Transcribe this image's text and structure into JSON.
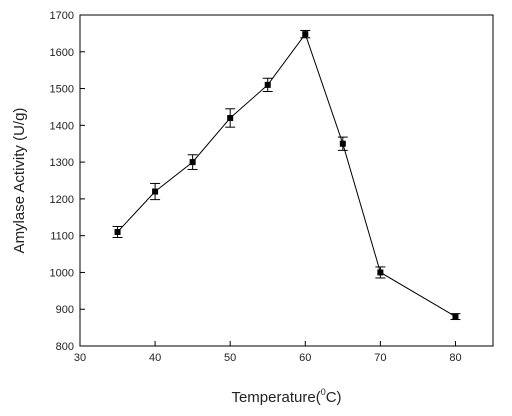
{
  "chart_data": {
    "type": "scatter",
    "title": "",
    "xlabel": "Temperature",
    "xlabel_unit_prefix": "(",
    "xlabel_unit_sup": "0",
    "xlabel_unit_suffix": "C)",
    "ylabel": "Amylase Activity (U/g)",
    "xlim": [
      30,
      85
    ],
    "ylim": [
      800,
      1700
    ],
    "xticks": [
      30,
      40,
      50,
      60,
      70,
      80
    ],
    "xtick_labels": [
      "30",
      "40",
      "50",
      "60",
      "70",
      "80"
    ],
    "yticks": [
      800,
      900,
      1000,
      1100,
      1200,
      1300,
      1400,
      1500,
      1600,
      1700
    ],
    "ytick_labels": [
      "800",
      "900",
      "1000",
      "1100",
      "1200",
      "1300",
      "1400",
      "1500",
      "1600",
      "1700"
    ],
    "grid": false,
    "legend": "none",
    "series": [
      {
        "x": [
          35,
          40,
          45,
          50,
          55,
          60,
          65,
          70,
          80
        ],
        "y": [
          1110,
          1220,
          1300,
          1420,
          1510,
          1648,
          1350,
          1000,
          880
        ],
        "error": [
          15,
          22,
          20,
          25,
          18,
          10,
          18,
          15,
          8
        ],
        "marker": "square",
        "connected": true
      }
    ]
  }
}
